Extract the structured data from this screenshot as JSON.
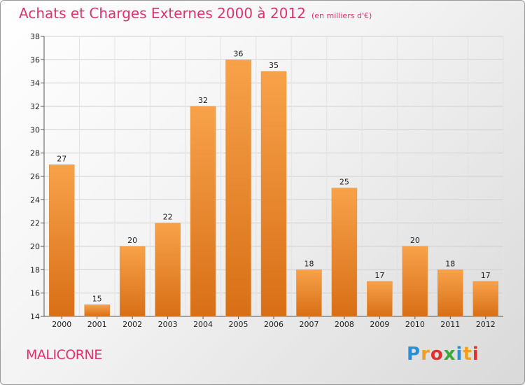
{
  "title": "Achats et Charges Externes 2000 à 2012",
  "unit": "(en milliers d'€)",
  "place": "MALICORNE",
  "logo": {
    "text": "Proxiti",
    "letters": [
      {
        "ch": "P",
        "color": "#2a8fd6"
      },
      {
        "ch": "r",
        "color": "#f0a020"
      },
      {
        "ch": "o",
        "color": "#e03030"
      },
      {
        "ch": "x",
        "color": "#3aa83a"
      },
      {
        "ch": "i",
        "color": "#2a8fd6"
      },
      {
        "ch": "t",
        "color": "#f0a020"
      },
      {
        "ch": "i",
        "color": "#e03030"
      }
    ]
  },
  "chart_data": {
    "type": "bar",
    "title": "Achats et Charges Externes 2000 à 2012",
    "categories": [
      "2000",
      "2001",
      "2002",
      "2003",
      "2004",
      "2005",
      "2006",
      "2007",
      "2008",
      "2009",
      "2010",
      "2011",
      "2012"
    ],
    "values": [
      27,
      15,
      20,
      22,
      32,
      36,
      35,
      18,
      25,
      17,
      20,
      18,
      17
    ],
    "ylim": [
      14,
      38
    ],
    "yticks": [
      14,
      16,
      18,
      20,
      22,
      24,
      26,
      28,
      30,
      32,
      34,
      36,
      38
    ],
    "grid": true,
    "bar_color": "#f0912e",
    "bar_color_dark": "#d96a12"
  }
}
